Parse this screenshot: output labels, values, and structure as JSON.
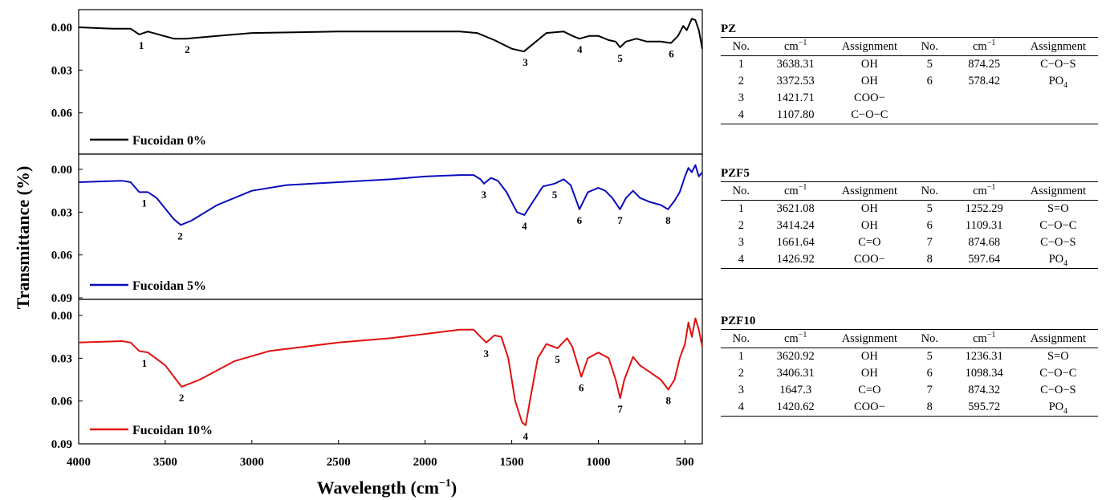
{
  "chart_data": {
    "type": "line",
    "xlabel_main": "Wavelength (cm",
    "xlabel_sup": "−1",
    "xlabel_close": ")",
    "ylabel": "Transmittance (%)",
    "xlim": [
      4000,
      400
    ],
    "x_reversed": true,
    "x_ticks": [
      "4000",
      "3500",
      "3000",
      "2500",
      "2000",
      "1500",
      "1000",
      "500"
    ],
    "x_tick_values": [
      4000,
      3500,
      3000,
      2500,
      2000,
      1500,
      1000,
      500
    ],
    "panels": [
      {
        "legend": "Fucoidan 0%",
        "color": "#000000",
        "ylim": [
          0,
          0.09
        ],
        "y_ticks": [
          "0.00",
          "0.03",
          "0.06"
        ],
        "points": [
          [
            4000,
            0.0
          ],
          [
            3800,
            0.001
          ],
          [
            3700,
            0.001
          ],
          [
            3650,
            0.005
          ],
          [
            3600,
            0.003
          ],
          [
            3450,
            0.008
          ],
          [
            3380,
            0.008
          ],
          [
            3200,
            0.006
          ],
          [
            3000,
            0.004
          ],
          [
            2500,
            0.003
          ],
          [
            2000,
            0.003
          ],
          [
            1800,
            0.003
          ],
          [
            1700,
            0.004
          ],
          [
            1600,
            0.009
          ],
          [
            1500,
            0.015
          ],
          [
            1430,
            0.017
          ],
          [
            1380,
            0.012
          ],
          [
            1300,
            0.004
          ],
          [
            1200,
            0.003
          ],
          [
            1150,
            0.006
          ],
          [
            1110,
            0.008
          ],
          [
            1050,
            0.006
          ],
          [
            1000,
            0.006
          ],
          [
            940,
            0.009
          ],
          [
            900,
            0.01
          ],
          [
            875,
            0.014
          ],
          [
            840,
            0.01
          ],
          [
            780,
            0.008
          ],
          [
            720,
            0.01
          ],
          [
            640,
            0.01
          ],
          [
            580,
            0.011
          ],
          [
            540,
            0.006
          ],
          [
            510,
            -0.001
          ],
          [
            490,
            0.002
          ],
          [
            460,
            -0.006
          ],
          [
            440,
            -0.005
          ],
          [
            420,
            0.002
          ],
          [
            400,
            0.015
          ]
        ],
        "peaks": [
          {
            "label": "1",
            "x": 3638.31,
            "y": 0.005
          },
          {
            "label": "2",
            "x": 3372.53,
            "y": 0.008
          },
          {
            "label": "3",
            "x": 1421.71,
            "y": 0.017
          },
          {
            "label": "4",
            "x": 1107.8,
            "y": 0.008
          },
          {
            "label": "5",
            "x": 874.25,
            "y": 0.014
          },
          {
            "label": "6",
            "x": 578.42,
            "y": 0.011
          }
        ]
      },
      {
        "legend": "Fucoidan 5%",
        "color": "#0b0bbf",
        "ylim": [
          0,
          0.09
        ],
        "y_ticks": [
          "0.00",
          "0.03",
          "0.06",
          "0.09"
        ],
        "points": [
          [
            4000,
            0.009
          ],
          [
            3750,
            0.008
          ],
          [
            3700,
            0.009
          ],
          [
            3650,
            0.016
          ],
          [
            3600,
            0.016
          ],
          [
            3550,
            0.02
          ],
          [
            3450,
            0.035
          ],
          [
            3410,
            0.039
          ],
          [
            3350,
            0.036
          ],
          [
            3200,
            0.025
          ],
          [
            3000,
            0.015
          ],
          [
            2800,
            0.011
          ],
          [
            2500,
            0.009
          ],
          [
            2200,
            0.007
          ],
          [
            2000,
            0.005
          ],
          [
            1800,
            0.004
          ],
          [
            1720,
            0.004
          ],
          [
            1680,
            0.007
          ],
          [
            1660,
            0.01
          ],
          [
            1620,
            0.006
          ],
          [
            1580,
            0.008
          ],
          [
            1530,
            0.016
          ],
          [
            1470,
            0.03
          ],
          [
            1427,
            0.032
          ],
          [
            1390,
            0.025
          ],
          [
            1320,
            0.012
          ],
          [
            1252,
            0.01
          ],
          [
            1200,
            0.007
          ],
          [
            1160,
            0.011
          ],
          [
            1109,
            0.028
          ],
          [
            1060,
            0.016
          ],
          [
            1000,
            0.013
          ],
          [
            960,
            0.015
          ],
          [
            920,
            0.02
          ],
          [
            875,
            0.028
          ],
          [
            840,
            0.02
          ],
          [
            800,
            0.015
          ],
          [
            760,
            0.02
          ],
          [
            700,
            0.023
          ],
          [
            640,
            0.025
          ],
          [
            598,
            0.028
          ],
          [
            560,
            0.022
          ],
          [
            530,
            0.016
          ],
          [
            500,
            0.005
          ],
          [
            480,
            -0.001
          ],
          [
            460,
            0.002
          ],
          [
            440,
            -0.003
          ],
          [
            420,
            0.005
          ],
          [
            400,
            0.002
          ]
        ],
        "peaks": [
          {
            "label": "1",
            "x": 3621.08,
            "y": 0.016
          },
          {
            "label": "2",
            "x": 3414.24,
            "y": 0.039
          },
          {
            "label": "3",
            "x": 1661.64,
            "y": 0.01
          },
          {
            "label": "4",
            "x": 1426.92,
            "y": 0.032
          },
          {
            "label": "5",
            "x": 1252.29,
            "y": 0.01
          },
          {
            "label": "6",
            "x": 1109.31,
            "y": 0.028
          },
          {
            "label": "7",
            "x": 874.68,
            "y": 0.028
          },
          {
            "label": "8",
            "x": 597.64,
            "y": 0.028
          }
        ]
      },
      {
        "legend": "Fucoidan 10%",
        "color": "#e01010",
        "ylim": [
          0,
          0.09
        ],
        "y_ticks": [
          "0.00",
          "0.03",
          "0.06",
          "0.09"
        ],
        "points": [
          [
            4000,
            0.019
          ],
          [
            3750,
            0.018
          ],
          [
            3700,
            0.019
          ],
          [
            3650,
            0.025
          ],
          [
            3600,
            0.026
          ],
          [
            3500,
            0.035
          ],
          [
            3406,
            0.05
          ],
          [
            3300,
            0.045
          ],
          [
            3100,
            0.032
          ],
          [
            2900,
            0.025
          ],
          [
            2700,
            0.022
          ],
          [
            2500,
            0.019
          ],
          [
            2200,
            0.016
          ],
          [
            2000,
            0.013
          ],
          [
            1800,
            0.01
          ],
          [
            1720,
            0.01
          ],
          [
            1680,
            0.015
          ],
          [
            1647,
            0.019
          ],
          [
            1600,
            0.014
          ],
          [
            1560,
            0.015
          ],
          [
            1520,
            0.03
          ],
          [
            1480,
            0.06
          ],
          [
            1440,
            0.075
          ],
          [
            1420,
            0.077
          ],
          [
            1395,
            0.06
          ],
          [
            1350,
            0.03
          ],
          [
            1300,
            0.02
          ],
          [
            1236,
            0.023
          ],
          [
            1180,
            0.016
          ],
          [
            1150,
            0.022
          ],
          [
            1098,
            0.043
          ],
          [
            1060,
            0.03
          ],
          [
            1000,
            0.026
          ],
          [
            940,
            0.03
          ],
          [
            900,
            0.045
          ],
          [
            874,
            0.058
          ],
          [
            850,
            0.045
          ],
          [
            800,
            0.029
          ],
          [
            760,
            0.035
          ],
          [
            700,
            0.04
          ],
          [
            640,
            0.045
          ],
          [
            596,
            0.052
          ],
          [
            560,
            0.045
          ],
          [
            530,
            0.03
          ],
          [
            500,
            0.02
          ],
          [
            480,
            0.005
          ],
          [
            460,
            0.015
          ],
          [
            440,
            0.002
          ],
          [
            420,
            0.01
          ],
          [
            400,
            0.022
          ]
        ],
        "peaks": [
          {
            "label": "1",
            "x": 3620.92,
            "y": 0.026
          },
          {
            "label": "2",
            "x": 3406.31,
            "y": 0.05
          },
          {
            "label": "3",
            "x": 1647.3,
            "y": 0.019
          },
          {
            "label": "4",
            "x": 1420.62,
            "y": 0.077
          },
          {
            "label": "5",
            "x": 1236.31,
            "y": 0.023
          },
          {
            "label": "6",
            "x": 1098.34,
            "y": 0.043
          },
          {
            "label": "7",
            "x": 874.32,
            "y": 0.058
          },
          {
            "label": "8",
            "x": 595.72,
            "y": 0.052
          }
        ]
      }
    ]
  },
  "tables": [
    {
      "title": "PZ",
      "headers": [
        "No.",
        "cm",
        "Assignment",
        "No.",
        "cm",
        "Assignment"
      ],
      "unit_sup": "−1",
      "rows": [
        [
          {
            "t": "1"
          },
          {
            "t": "3638.31"
          },
          {
            "t": "OH"
          },
          {
            "t": "5"
          },
          {
            "t": "874.25"
          },
          {
            "t": "C−O−S"
          }
        ],
        [
          {
            "t": "2"
          },
          {
            "t": "3372.53"
          },
          {
            "t": "OH"
          },
          {
            "t": "6"
          },
          {
            "t": "578.42"
          },
          {
            "t": "PO",
            "sub": "4"
          }
        ],
        [
          {
            "t": "3"
          },
          {
            "t": "1421.71"
          },
          {
            "t": "COO−"
          },
          {
            "t": ""
          },
          {
            "t": ""
          },
          {
            "t": ""
          }
        ],
        [
          {
            "t": "4"
          },
          {
            "t": "1107.80"
          },
          {
            "t": "C−O−C"
          },
          {
            "t": ""
          },
          {
            "t": ""
          },
          {
            "t": ""
          }
        ]
      ]
    },
    {
      "title": "PZF5",
      "headers": [
        "No.",
        "cm",
        "Assignment",
        "No.",
        "cm",
        "Assignment"
      ],
      "unit_sup": "−1",
      "rows": [
        [
          {
            "t": "1"
          },
          {
            "t": "3621.08"
          },
          {
            "t": "OH"
          },
          {
            "t": "5"
          },
          {
            "t": "1252.29"
          },
          {
            "t": "S=O"
          }
        ],
        [
          {
            "t": "2"
          },
          {
            "t": "3414.24"
          },
          {
            "t": "OH"
          },
          {
            "t": "6"
          },
          {
            "t": "1109.31"
          },
          {
            "t": "C−O−C"
          }
        ],
        [
          {
            "t": "3"
          },
          {
            "t": "1661.64"
          },
          {
            "t": "C=O"
          },
          {
            "t": "7"
          },
          {
            "t": "874.68"
          },
          {
            "t": "C−O−S"
          }
        ],
        [
          {
            "t": "4"
          },
          {
            "t": "1426.92"
          },
          {
            "t": "COO−"
          },
          {
            "t": "8"
          },
          {
            "t": "597.64"
          },
          {
            "t": "PO",
            "sub": "4"
          }
        ]
      ]
    },
    {
      "title": "PZF10",
      "headers": [
        "No.",
        "cm",
        "Assignment",
        "No.",
        "cm",
        "Assignment"
      ],
      "unit_sup": "−1",
      "rows": [
        [
          {
            "t": "1"
          },
          {
            "t": "3620.92"
          },
          {
            "t": "OH"
          },
          {
            "t": "5"
          },
          {
            "t": "1236.31"
          },
          {
            "t": "S=O"
          }
        ],
        [
          {
            "t": "2"
          },
          {
            "t": "3406.31"
          },
          {
            "t": "OH"
          },
          {
            "t": "6"
          },
          {
            "t": "1098.34"
          },
          {
            "t": "C−O−C"
          }
        ],
        [
          {
            "t": "3"
          },
          {
            "t": "1647.3"
          },
          {
            "t": "C=O"
          },
          {
            "t": "7"
          },
          {
            "t": "874.32"
          },
          {
            "t": "C−O−S"
          }
        ],
        [
          {
            "t": "4"
          },
          {
            "t": "1420.62"
          },
          {
            "t": "COO−"
          },
          {
            "t": "8"
          },
          {
            "t": "595.72"
          },
          {
            "t": "PO",
            "sub": "4"
          }
        ]
      ]
    }
  ]
}
